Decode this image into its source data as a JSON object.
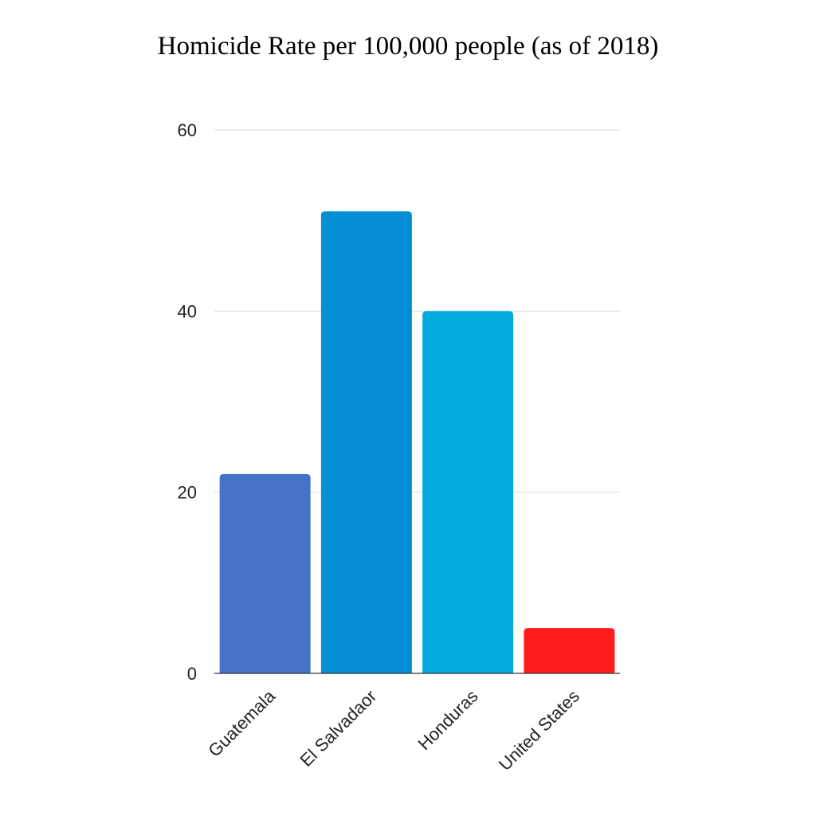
{
  "chart_data": {
    "type": "bar",
    "title": "Homicide Rate per 100,000 people (as of 2018)",
    "xlabel": "",
    "ylabel": "",
    "categories": [
      "Guatemala",
      "El Salvadaor",
      "Honduras",
      "United States"
    ],
    "values": [
      22,
      51,
      40,
      5
    ],
    "colors": [
      "#4472c4",
      "#038dd4",
      "#03abdc",
      "#ff1c1c"
    ],
    "ylim": [
      0,
      60
    ],
    "yticks": [
      0,
      20,
      40,
      60
    ],
    "grid": true,
    "legend": "none"
  }
}
